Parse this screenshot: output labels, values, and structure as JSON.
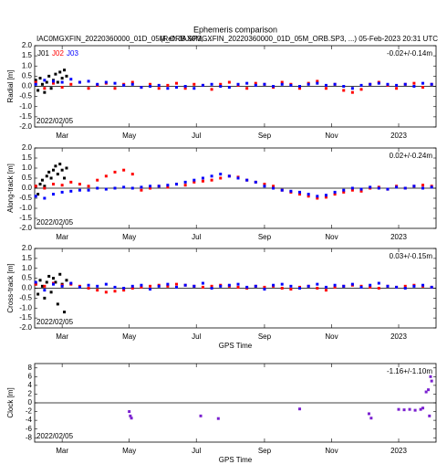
{
  "chart_data": [
    {
      "type": "scatter",
      "title": "Ephemeris comparison",
      "subtitle_left": "IAC0MGXFIN_20220360000_01D_05M_ORB.SP3, ...",
      "subtitle_right": "(Ref: JAX0MGXFIN_20220360000_01D_05M_ORB.SP3, ...)  05-Feb-2023 20:31 UTC",
      "ylabel": "Radial [m]",
      "annotation": "-0.02+/-0.14m",
      "start_label": "2022/02/05",
      "legend": true,
      "xlim": [
        -1,
        364
      ],
      "xticks": [
        {
          "value": 24,
          "label": "Mar"
        },
        {
          "value": 85,
          "label": "May"
        },
        {
          "value": 146,
          "label": "Jul"
        },
        {
          "value": 208,
          "label": "Sep"
        },
        {
          "value": 269,
          "label": "Nov"
        },
        {
          "value": 330,
          "label": "2023"
        }
      ],
      "ylim": [
        -2,
        2
      ],
      "yticks": [
        {
          "value": 2,
          "label": "2.0"
        },
        1.5,
        {
          "value": 1,
          "label": "1.0"
        },
        0.5,
        {
          "value": 0,
          "label": "0.0"
        },
        -0.5,
        {
          "value": -1,
          "label": "-1.0"
        },
        -1.5,
        {
          "value": -2,
          "label": "-2.0"
        }
      ],
      "series": [
        {
          "name": "J01",
          "color": "#000000",
          "x": [
            0,
            2,
            4,
            6,
            8,
            10,
            12,
            14,
            16,
            18,
            20,
            22,
            24,
            26,
            28
          ],
          "values": [
            0.3,
            -0.2,
            0.4,
            0.1,
            -0.3,
            0.2,
            0.5,
            -0.1,
            0.3,
            0.6,
            0.2,
            0.7,
            0.4,
            0.8,
            0.5
          ]
        },
        {
          "name": "J02",
          "color": "#ff0000",
          "x": [
            0,
            8,
            16,
            24,
            32,
            40,
            48,
            56,
            64,
            72,
            80,
            88,
            96,
            104,
            112,
            120,
            128,
            136,
            144,
            152,
            160,
            168,
            176,
            184,
            192,
            200,
            208,
            216,
            224,
            232,
            240,
            248,
            256,
            264,
            272,
            280,
            288,
            296,
            304,
            312,
            320,
            328,
            336,
            344,
            352,
            360
          ],
          "values": [
            0.2,
            -0.1,
            0.15,
            -0.05,
            0.1,
            0.2,
            -0.1,
            0.05,
            0.15,
            -0.1,
            0.1,
            0.2,
            -0.05,
            0.1,
            -0.1,
            0.05,
            0.15,
            -0.1,
            0.1,
            0.05,
            -0.15,
            0.1,
            0.2,
            0.05,
            -0.1,
            0.15,
            0.1,
            -0.05,
            0.2,
            0.1,
            -0.1,
            0.15,
            0.25,
            -0.1,
            0.1,
            -0.2,
            -0.3,
            -0.15,
            0.1,
            0.2,
            0.05,
            -0.1,
            0.1,
            0.15,
            -0.05,
            0.1
          ]
        },
        {
          "name": "J03",
          "color": "#0000ff",
          "x": [
            0,
            8,
            16,
            24,
            32,
            40,
            48,
            56,
            64,
            72,
            80,
            88,
            96,
            104,
            112,
            120,
            128,
            136,
            144,
            152,
            160,
            168,
            176,
            184,
            192,
            200,
            208,
            216,
            224,
            232,
            240,
            248,
            256,
            264,
            272,
            280,
            288,
            296,
            304,
            312,
            320,
            328,
            336,
            344,
            352,
            360
          ],
          "values": [
            0.1,
            0.3,
            0.25,
            0.2,
            0.35,
            0.2,
            0.25,
            0.1,
            0.2,
            0.15,
            0.05,
            0.1,
            -0.05,
            0.0,
            0.05,
            -0.1,
            -0.05,
            0.0,
            -0.1,
            0.05,
            0.1,
            0.0,
            -0.05,
            0.1,
            0.15,
            0.05,
            0.1,
            0.0,
            0.1,
            0.05,
            0.0,
            0.1,
            0.15,
            0.05,
            0.1,
            0.0,
            -0.1,
            0.05,
            0.1,
            0.15,
            0.1,
            0.05,
            0.1,
            0.0,
            0.15,
            0.1
          ]
        }
      ]
    },
    {
      "type": "scatter",
      "ylabel": "Along-track [m]",
      "annotation": "0.02+/-0.24m",
      "start_label": "2022/02/05",
      "xlim": [
        -1,
        364
      ],
      "xticks": [
        {
          "value": 24,
          "label": "Mar"
        },
        {
          "value": 85,
          "label": "May"
        },
        {
          "value": 146,
          "label": "Jul"
        },
        {
          "value": 208,
          "label": "Sep"
        },
        {
          "value": 269,
          "label": "Nov"
        },
        {
          "value": 330,
          "label": "2023"
        }
      ],
      "ylim": [
        -2,
        2
      ],
      "yticks": [
        {
          "value": 2,
          "label": "2.0"
        },
        1.5,
        {
          "value": 1,
          "label": "1.0"
        },
        0.5,
        {
          "value": 0,
          "label": "0.0"
        },
        -0.5,
        {
          "value": -1,
          "label": "-1.0"
        },
        -1.5,
        {
          "value": -2,
          "label": "-2.0"
        }
      ],
      "series": [
        {
          "color": "#000000",
          "x": [
            0,
            2,
            4,
            6,
            8,
            10,
            12,
            14,
            16,
            18,
            20,
            22,
            24,
            26,
            28
          ],
          "values": [
            0.1,
            -0.3,
            0.2,
            0.4,
            0.1,
            0.6,
            0.8,
            0.5,
            0.9,
            1.1,
            0.7,
            1.2,
            0.9,
            0.5,
            1.0
          ]
        },
        {
          "color": "#ff0000",
          "x": [
            0,
            8,
            16,
            24,
            32,
            40,
            48,
            56,
            64,
            72,
            80,
            88,
            96,
            104,
            112,
            120,
            128,
            136,
            144,
            152,
            160,
            168,
            176,
            184,
            192,
            200,
            208,
            216,
            224,
            232,
            240,
            248,
            256,
            264,
            272,
            280,
            288,
            296,
            304,
            312,
            320,
            328,
            336,
            344,
            352,
            360
          ],
          "values": [
            0.1,
            0.0,
            0.2,
            0.15,
            0.3,
            0.2,
            0.1,
            0.4,
            0.6,
            0.8,
            0.9,
            0.7,
            -0.1,
            0.0,
            0.1,
            0.05,
            0.2,
            0.15,
            0.3,
            0.35,
            0.4,
            0.5,
            0.6,
            0.55,
            0.4,
            0.3,
            0.2,
            0.1,
            -0.1,
            -0.2,
            -0.3,
            -0.4,
            -0.5,
            -0.45,
            -0.3,
            -0.2,
            -0.1,
            -0.15,
            0.0,
            0.05,
            -0.05,
            0.1,
            0.0,
            0.1,
            0.15,
            0.1
          ]
        },
        {
          "color": "#0000ff",
          "x": [
            0,
            8,
            16,
            24,
            32,
            40,
            48,
            56,
            64,
            72,
            80,
            88,
            96,
            104,
            112,
            120,
            128,
            136,
            144,
            152,
            160,
            168,
            176,
            184,
            192,
            200,
            208,
            216,
            224,
            232,
            240,
            248,
            256,
            264,
            272,
            280,
            288,
            296,
            304,
            312,
            320,
            328,
            336,
            344,
            352,
            360
          ],
          "values": [
            -0.4,
            -0.5,
            -0.3,
            -0.2,
            -0.15,
            -0.1,
            -0.1,
            0.0,
            -0.05,
            0.0,
            0.05,
            0.0,
            0.05,
            0.1,
            0.1,
            0.15,
            0.2,
            0.3,
            0.4,
            0.5,
            0.6,
            0.7,
            0.6,
            0.5,
            0.4,
            0.3,
            0.1,
            0.0,
            -0.1,
            -0.15,
            -0.2,
            -0.3,
            -0.4,
            -0.35,
            -0.2,
            -0.1,
            0.0,
            -0.05,
            0.05,
            0.0,
            -0.05,
            0.05,
            0.0,
            0.1,
            0.0,
            0.05
          ]
        }
      ]
    },
    {
      "type": "scatter",
      "ylabel": "Cross-track [m]",
      "xlabel": "GPS Time",
      "annotation": "0.03+/-0.15m",
      "start_label": "2022/02/05",
      "xlim": [
        -1,
        364
      ],
      "xticks": [
        {
          "value": 24,
          "label": "Mar"
        },
        {
          "value": 85,
          "label": "May"
        },
        {
          "value": 146,
          "label": "Jul"
        },
        {
          "value": 208,
          "label": "Sep"
        },
        {
          "value": 269,
          "label": "Nov"
        },
        {
          "value": 330,
          "label": "2023"
        }
      ],
      "ylim": [
        -2,
        2
      ],
      "yticks": [
        {
          "value": 2,
          "label": "2.0"
        },
        1.5,
        {
          "value": 1,
          "label": "1.0"
        },
        0.5,
        {
          "value": 0,
          "label": "0.0"
        },
        -0.5,
        {
          "value": -1,
          "label": "-1.0"
        },
        -1.5,
        {
          "value": -2,
          "label": "-2.0"
        }
      ],
      "series": [
        {
          "color": "#000000",
          "x": [
            0,
            2,
            4,
            6,
            8,
            10,
            12,
            14,
            16,
            18,
            20,
            22,
            24,
            26,
            28
          ],
          "values": [
            0.2,
            -0.3,
            0.4,
            0.1,
            -0.5,
            0.3,
            0.6,
            -0.2,
            0.5,
            0.3,
            -0.8,
            0.7,
            0.2,
            -1.2,
            0.4
          ]
        },
        {
          "color": "#ff0000",
          "x": [
            0,
            8,
            16,
            24,
            32,
            40,
            48,
            56,
            64,
            72,
            80,
            88,
            96,
            104,
            112,
            120,
            128,
            136,
            144,
            152,
            160,
            168,
            176,
            184,
            192,
            200,
            208,
            216,
            224,
            232,
            240,
            248,
            256,
            264,
            272,
            280,
            288,
            296,
            304,
            312,
            320,
            328,
            336,
            344,
            352,
            360
          ],
          "values": [
            0.2,
            0.1,
            0.25,
            0.15,
            0.2,
            0.1,
            0.0,
            -0.1,
            -0.2,
            -0.15,
            -0.1,
            0.0,
            0.05,
            0.1,
            0.15,
            0.1,
            0.2,
            0.15,
            0.1,
            0.05,
            0.1,
            0.15,
            0.1,
            0.05,
            0.0,
            0.1,
            0.05,
            0.1,
            0.0,
            -0.05,
            0.05,
            0.1,
            0.0,
            -0.1,
            0.05,
            0.1,
            0.15,
            0.1,
            0.05,
            0.0,
            0.1,
            0.05,
            0.1,
            0.15,
            0.1,
            0.05
          ]
        },
        {
          "color": "#0000ff",
          "x": [
            0,
            8,
            16,
            24,
            32,
            40,
            48,
            56,
            64,
            72,
            80,
            88,
            96,
            104,
            112,
            120,
            128,
            136,
            144,
            152,
            160,
            168,
            176,
            184,
            192,
            200,
            208,
            216,
            224,
            232,
            240,
            248,
            256,
            264,
            272,
            280,
            288,
            296,
            304,
            312,
            320,
            328,
            336,
            344,
            352,
            360
          ],
          "values": [
            0.3,
            -0.1,
            0.2,
            0.1,
            0.25,
            0.05,
            0.15,
            0.1,
            0.2,
            0.05,
            0.0,
            0.1,
            0.15,
            -0.05,
            0.1,
            0.2,
            0.05,
            0.15,
            0.1,
            0.25,
            0.0,
            0.1,
            0.15,
            0.2,
            0.05,
            0.1,
            -0.05,
            0.15,
            0.2,
            0.1,
            0.0,
            0.1,
            0.2,
            0.05,
            0.15,
            0.1,
            0.2,
            0.05,
            0.15,
            0.25,
            0.1,
            0.05,
            0.0,
            0.1,
            0.15,
            0.05
          ]
        }
      ]
    },
    {
      "type": "scatter",
      "ylabel": "Clock [m]",
      "xlabel": "GPS Time",
      "annotation": "-1.16+/-1.10m",
      "start_label": "2022/02/05",
      "xlim": [
        -1,
        364
      ],
      "xticks": [
        {
          "value": 24,
          "label": "Mar"
        },
        {
          "value": 85,
          "label": "May"
        },
        {
          "value": 146,
          "label": "Jul"
        },
        {
          "value": 208,
          "label": "Sep"
        },
        {
          "value": 269,
          "label": "Nov"
        },
        {
          "value": 330,
          "label": "2023"
        }
      ],
      "ylim": [
        -9,
        9
      ],
      "yticks": [
        8,
        6,
        4,
        2,
        0,
        -2,
        -4,
        -6,
        -8
      ],
      "series": [
        {
          "color": "#7a20d0",
          "x": [
            85,
            86,
            87,
            150,
            166,
            240,
            303,
            305,
            330,
            335,
            340,
            345,
            350,
            352,
            355,
            357,
            358,
            359,
            360
          ],
          "values": [
            -2,
            -3,
            -3.5,
            -3,
            -3.6,
            -1.4,
            -2.5,
            -3.5,
            -1.5,
            -1.6,
            -1.5,
            -1.7,
            -1.5,
            -1.2,
            2.5,
            3,
            -3,
            6,
            5
          ]
        }
      ]
    }
  ]
}
